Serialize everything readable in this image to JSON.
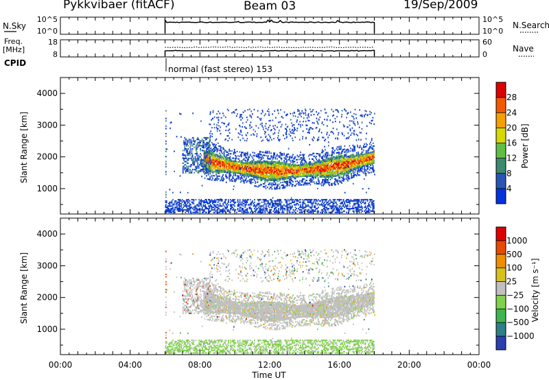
{
  "header": {
    "station": "Pykkvibaer (fitACF)",
    "beam": "Beam 03",
    "date": "19/Sep/2009"
  },
  "left_labels": {
    "nsky": "N.Sky",
    "freq_line1": "Freq.",
    "freq_line2": "[MHz]",
    "cpid": "CPID"
  },
  "right_labels": {
    "nsearch": "N.Search",
    "nave": "Nave"
  },
  "cpid_text": "normal (fast stereo) 153",
  "chart_data": [
    {
      "type": "line",
      "panel": "noise",
      "left_ticks": [
        "10^5",
        "10^0"
      ],
      "right_ticks": [
        "10^5",
        "10^0"
      ],
      "x_range_hours": [
        6,
        18
      ]
    },
    {
      "type": "line",
      "panel": "frequency",
      "left_ticks": [
        "18",
        "8"
      ],
      "right_ticks": [
        "60",
        "0"
      ],
      "ylim_left": [
        8,
        18
      ],
      "ylim_right": [
        0,
        60
      ],
      "x_range_hours": [
        6,
        18
      ]
    },
    {
      "type": "heatmap",
      "panel": "power",
      "ylabel": "Slant Range [km]",
      "yticks": [
        "4000",
        "3000",
        "2000",
        "1000"
      ],
      "ylim": [
        200,
        4500
      ],
      "colorbar_label": "Power [dB]",
      "colorbar_ticks": [
        "28",
        "24",
        "20",
        "16",
        "12",
        "8",
        "4"
      ],
      "colors": [
        "#0033dd",
        "#2a55b5",
        "#3d8a70",
        "#5fbf45",
        "#d8d800",
        "#f4a000",
        "#f25a00",
        "#dd0000"
      ]
    },
    {
      "type": "heatmap",
      "panel": "velocity",
      "ylabel": "Slant Range [km]",
      "yticks": [
        "4000",
        "3000",
        "2000",
        "1000"
      ],
      "ylim": [
        200,
        4500
      ],
      "colorbar_label": "Velocity [m s⁻¹]",
      "colorbar_ticks": [
        "1000",
        "500",
        "100",
        "25",
        "−25",
        "−100",
        "−500",
        "−1000"
      ],
      "colors": [
        "#2a3fb0",
        "#2e7f86",
        "#3fb54f",
        "#7fd24a",
        "#c0c0c0",
        "#d8c21a",
        "#ef8f00",
        "#e84a00",
        "#dd0000"
      ]
    }
  ],
  "time_axis": {
    "ticks": [
      "00:00",
      "04:00",
      "08:00",
      "12:00",
      "16:00",
      "20:00",
      "00:00"
    ],
    "xlabel": "Time UT"
  }
}
